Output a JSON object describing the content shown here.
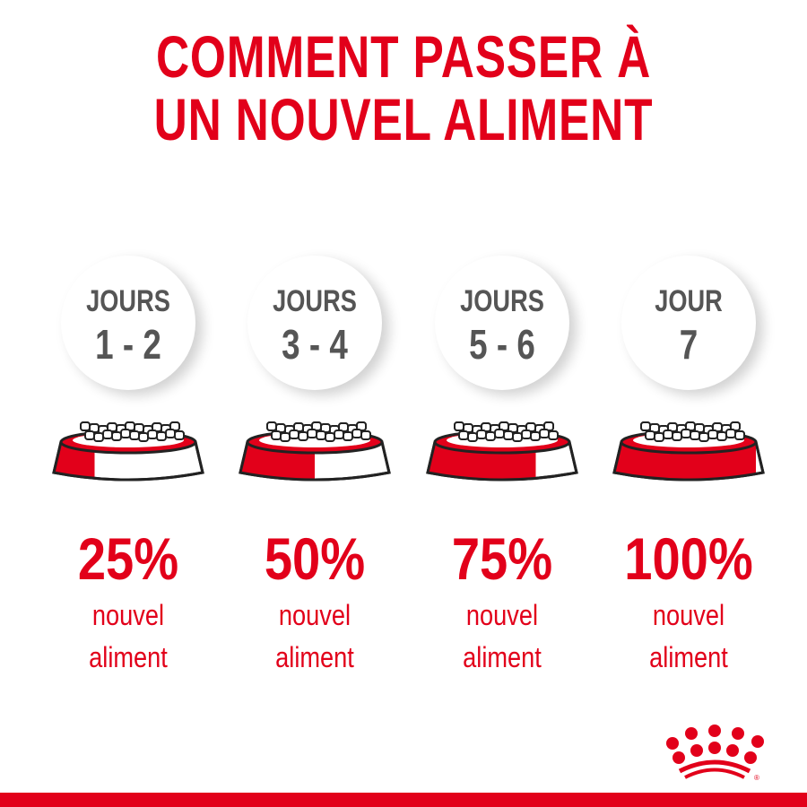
{
  "title": {
    "line1": "COMMENT PASSER À",
    "line2": "UN NOUVEL ALIMENT"
  },
  "steps": [
    {
      "days_label": "JOURS",
      "days_range": "1 - 2",
      "percent": "25%",
      "new_food_fraction": 0.25,
      "desc1": "nouvel",
      "desc2": "aliment"
    },
    {
      "days_label": "JOURS",
      "days_range": "3 - 4",
      "percent": "50%",
      "new_food_fraction": 0.5,
      "desc1": "nouvel",
      "desc2": "aliment"
    },
    {
      "days_label": "JOURS",
      "days_range": "5 - 6",
      "percent": "75%",
      "new_food_fraction": 0.75,
      "desc1": "nouvel",
      "desc2": "aliment"
    },
    {
      "days_label": "JOUR",
      "days_range": "7",
      "percent": "100%",
      "new_food_fraction": 1.0,
      "desc1": "nouvel",
      "desc2": "aliment"
    }
  ],
  "colors": {
    "brand_red": "#e2001a",
    "text_gray": "#555555"
  },
  "logo": {
    "name": "crown-logo",
    "mark": "®"
  }
}
